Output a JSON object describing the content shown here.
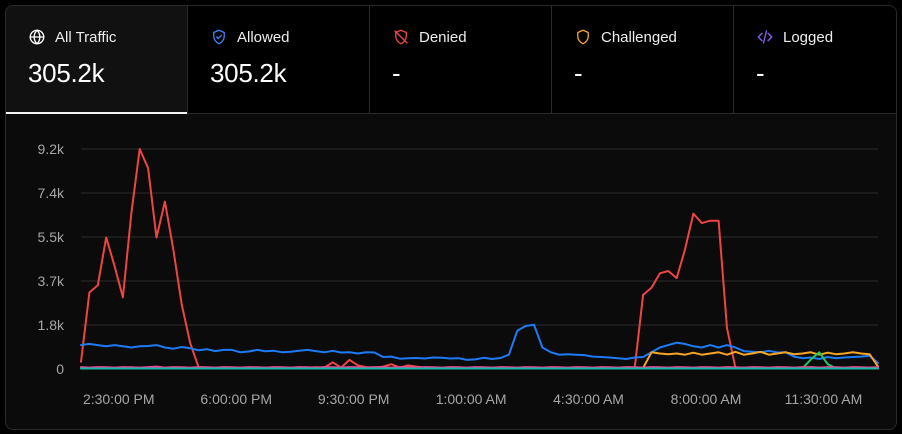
{
  "tabs": [
    {
      "label": "All Traffic",
      "value": "305.2k",
      "icon": "globe-icon",
      "color": "#ffffff",
      "active": true
    },
    {
      "label": "Allowed",
      "value": "305.2k",
      "icon": "shield-check-icon",
      "color": "#3b82f6",
      "active": false
    },
    {
      "label": "Denied",
      "value": "-",
      "icon": "shield-off-icon",
      "color": "#ef4444",
      "active": false
    },
    {
      "label": "Challenged",
      "value": "-",
      "icon": "shield-icon",
      "color": "#f5a524",
      "active": false
    },
    {
      "label": "Logged",
      "value": "-",
      "icon": "code-icon",
      "color": "#8b5cf6",
      "active": false
    }
  ],
  "chart_data": {
    "type": "line",
    "ylim": [
      0,
      9200
    ],
    "yticks": [
      "0",
      "1.8k",
      "3.7k",
      "5.5k",
      "7.4k",
      "9.2k"
    ],
    "ytick_values": [
      0,
      1840,
      3680,
      5520,
      7360,
      9200
    ],
    "xticks": [
      "2:30:00 PM",
      "6:00:00 PM",
      "9:30:00 PM",
      "1:00:00 AM",
      "4:30:00 AM",
      "8:00:00 AM",
      "11:30:00 AM"
    ],
    "xtick_positions": [
      4.5,
      18.5,
      32.5,
      46.5,
      60.5,
      74.5,
      88.5
    ],
    "x_count": 96,
    "grid": true,
    "series": [
      {
        "color": "#ef4444",
        "values": [
          300,
          3200,
          3500,
          5500,
          4300,
          3000,
          6500,
          9200,
          8400,
          5500,
          7000,
          5000,
          2700,
          1100,
          80,
          60,
          60,
          50,
          50,
          50,
          50,
          40,
          60,
          40,
          60,
          50,
          40,
          50,
          80,
          60,
          280,
          60,
          380,
          150,
          80,
          60,
          100,
          200,
          60,
          150,
          100,
          60,
          40,
          40,
          40,
          40,
          40,
          40,
          40,
          40,
          40,
          50,
          40,
          40,
          40,
          40,
          40,
          40,
          40,
          40,
          50,
          40,
          60,
          40,
          40,
          40,
          40,
          3100,
          3400,
          4000,
          4100,
          3800,
          5000,
          6500,
          6100,
          6200,
          6200,
          1700,
          60,
          60,
          40,
          60,
          40,
          60,
          40,
          40,
          40,
          80,
          60,
          40,
          40,
          40,
          40,
          40,
          60,
          40
        ]
      },
      {
        "color": "#1e7bf5",
        "values": [
          1000,
          1050,
          1000,
          950,
          1000,
          950,
          900,
          950,
          960,
          1000,
          900,
          850,
          920,
          870,
          780,
          830,
          750,
          800,
          800,
          700,
          730,
          800,
          740,
          760,
          700,
          720,
          760,
          800,
          750,
          700,
          760,
          690,
          700,
          650,
          700,
          690,
          500,
          520,
          430,
          450,
          460,
          440,
          480,
          470,
          440,
          450,
          380,
          400,
          470,
          420,
          460,
          600,
          1600,
          1800,
          1850,
          900,
          700,
          600,
          620,
          600,
          580,
          520,
          500,
          480,
          450,
          420,
          480,
          500,
          700,
          900,
          1000,
          1100,
          1050,
          950,
          900,
          1000,
          900,
          1000,
          900,
          750,
          720,
          700,
          760,
          690,
          700,
          520,
          450,
          480,
          420,
          500,
          450,
          480,
          500,
          520,
          550,
          250
        ]
      },
      {
        "color": "#f5a524",
        "values": [
          40,
          40,
          40,
          40,
          40,
          40,
          40,
          40,
          40,
          40,
          40,
          40,
          40,
          40,
          40,
          40,
          40,
          40,
          40,
          40,
          40,
          40,
          40,
          40,
          40,
          40,
          40,
          40,
          40,
          40,
          40,
          40,
          40,
          40,
          40,
          40,
          40,
          40,
          40,
          40,
          40,
          40,
          40,
          40,
          40,
          40,
          40,
          40,
          40,
          40,
          40,
          40,
          40,
          40,
          40,
          40,
          40,
          40,
          40,
          40,
          40,
          40,
          40,
          40,
          40,
          40,
          40,
          40,
          700,
          650,
          620,
          650,
          600,
          680,
          600,
          650,
          700,
          600,
          720,
          600,
          650,
          720,
          600,
          650,
          700,
          620,
          650,
          700,
          600,
          680,
          620,
          650,
          700,
          650,
          620,
          100
        ]
      },
      {
        "color": "#22c55e",
        "values": [
          30,
          30,
          30,
          30,
          30,
          30,
          30,
          30,
          30,
          30,
          30,
          30,
          30,
          30,
          30,
          30,
          30,
          30,
          30,
          30,
          30,
          30,
          30,
          30,
          30,
          30,
          30,
          30,
          30,
          30,
          30,
          30,
          30,
          30,
          30,
          30,
          30,
          30,
          30,
          30,
          30,
          30,
          30,
          30,
          30,
          30,
          30,
          30,
          30,
          30,
          30,
          30,
          30,
          30,
          30,
          30,
          30,
          30,
          30,
          30,
          30,
          30,
          30,
          30,
          30,
          30,
          30,
          30,
          30,
          30,
          30,
          30,
          30,
          30,
          30,
          30,
          30,
          30,
          30,
          30,
          30,
          30,
          30,
          30,
          30,
          30,
          30,
          400,
          700,
          200,
          30,
          30,
          30,
          30,
          30,
          30
        ]
      },
      {
        "color": "#ec4899",
        "values": [
          80,
          60,
          80,
          70,
          60,
          80,
          70,
          60,
          80,
          100,
          60,
          80,
          70,
          60,
          80,
          70,
          60,
          80,
          70,
          60,
          80,
          70,
          60,
          80,
          70,
          60,
          80,
          70,
          60,
          80,
          70,
          60,
          80,
          70,
          60,
          80,
          70,
          60,
          80,
          70,
          60,
          80,
          70,
          60,
          80,
          70,
          60,
          80,
          70,
          60,
          80,
          70,
          60,
          80,
          70,
          60,
          80,
          70,
          60,
          80,
          70,
          60,
          80,
          70,
          60,
          80,
          70,
          60,
          80,
          70,
          60,
          80,
          70,
          60,
          80,
          70,
          60,
          80,
          70,
          60,
          80,
          70,
          60,
          80,
          70,
          60,
          80,
          70,
          60,
          80,
          70,
          60,
          80,
          70,
          60,
          80
        ]
      },
      {
        "color": "#14b8a6",
        "values": [
          20,
          20,
          20,
          20,
          20,
          20,
          20,
          20,
          20,
          20,
          20,
          20,
          20,
          20,
          20,
          20,
          20,
          20,
          20,
          20,
          20,
          20,
          20,
          20,
          20,
          20,
          20,
          20,
          20,
          20,
          20,
          20,
          20,
          20,
          20,
          20,
          20,
          20,
          20,
          20,
          20,
          20,
          20,
          20,
          20,
          20,
          20,
          20,
          20,
          20,
          20,
          20,
          20,
          20,
          20,
          20,
          20,
          20,
          20,
          20,
          20,
          20,
          20,
          20,
          20,
          20,
          20,
          20,
          20,
          20,
          20,
          20,
          20,
          20,
          20,
          20,
          20,
          20,
          20,
          20,
          20,
          20,
          20,
          20,
          20,
          20,
          20,
          20,
          20,
          20,
          20,
          20,
          20,
          20,
          20,
          20
        ]
      }
    ]
  }
}
